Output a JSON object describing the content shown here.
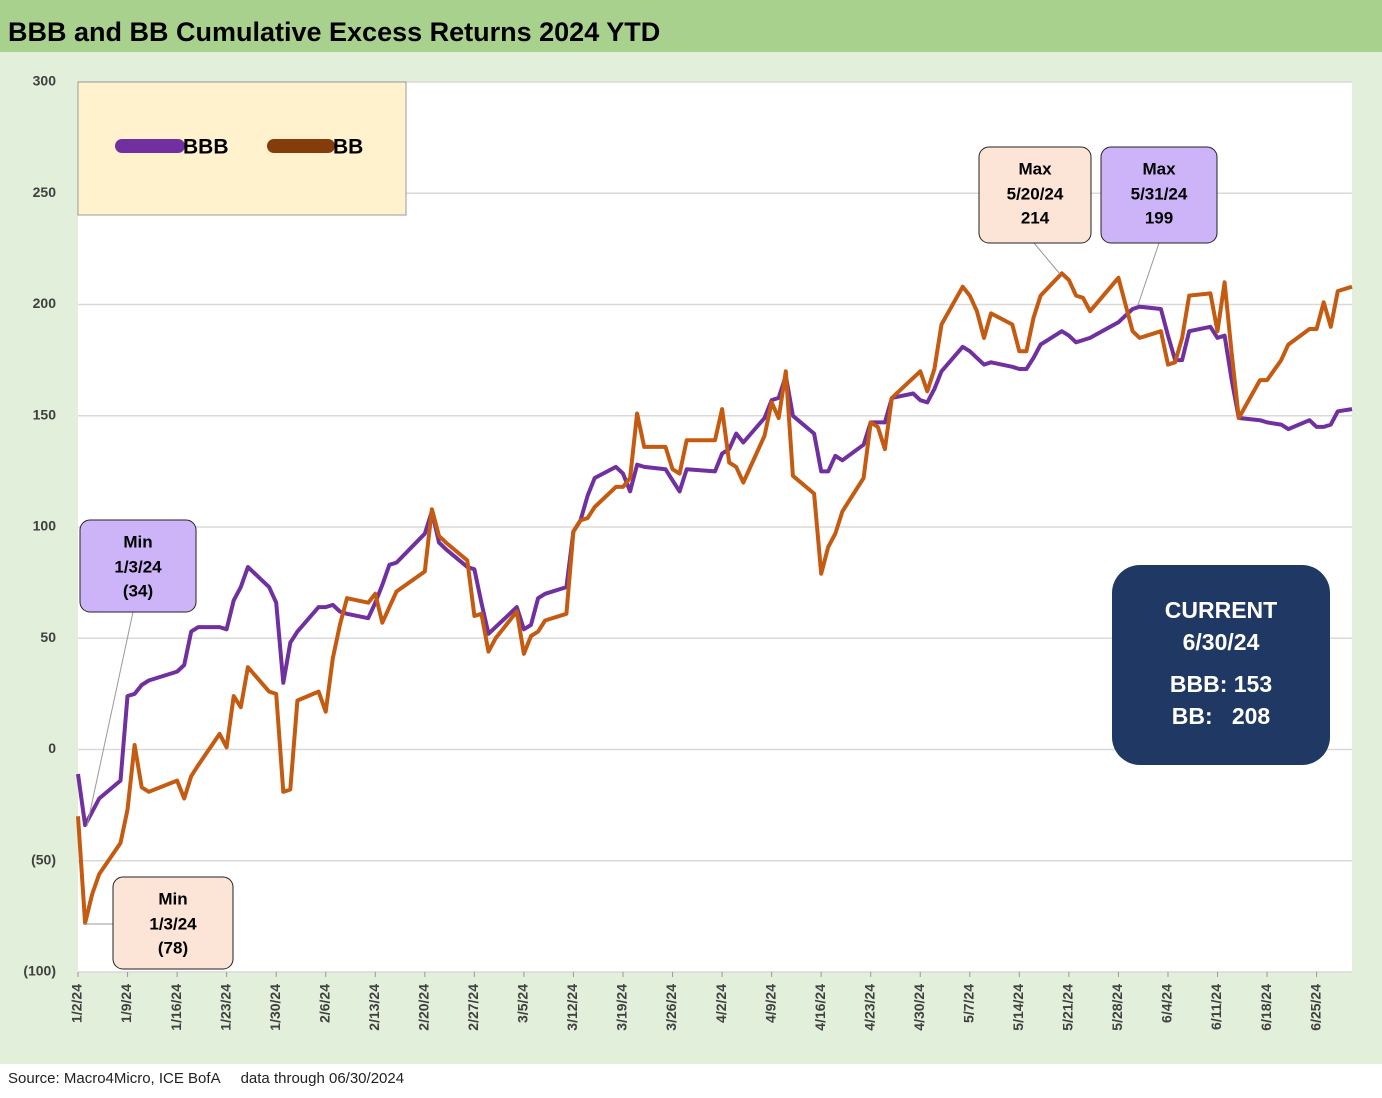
{
  "chart_data": {
    "type": "line",
    "title": "BBB and BB Cumulative Excess Returns 2024 YTD",
    "source": "Source: Macro4Micro, ICE BofA     data through 06/30/2024",
    "x": [
      "1/2/24",
      "1/3/24",
      "1/4/24",
      "1/5/24",
      "1/8/24",
      "1/9/24",
      "1/10/24",
      "1/11/24",
      "1/12/24",
      "1/16/24",
      "1/17/24",
      "1/18/24",
      "1/19/24",
      "1/22/24",
      "1/23/24",
      "1/24/24",
      "1/25/24",
      "1/26/24",
      "1/29/24",
      "1/30/24",
      "1/31/24",
      "2/1/24",
      "2/2/24",
      "2/5/24",
      "2/6/24",
      "2/7/24",
      "2/8/24",
      "2/9/24",
      "2/12/24",
      "2/13/24",
      "2/14/24",
      "2/15/24",
      "2/16/24",
      "2/20/24",
      "2/21/24",
      "2/22/24",
      "2/23/24",
      "2/26/24",
      "2/27/24",
      "2/28/24",
      "2/29/24",
      "3/1/24",
      "3/4/24",
      "3/5/24",
      "3/6/24",
      "3/7/24",
      "3/8/24",
      "3/11/24",
      "3/12/24",
      "3/13/24",
      "3/14/24",
      "3/15/24",
      "3/18/24",
      "3/19/24",
      "3/20/24",
      "3/21/24",
      "3/22/24",
      "3/25/24",
      "3/26/24",
      "3/27/24",
      "3/28/24",
      "4/1/24",
      "4/2/24",
      "4/3/24",
      "4/4/24",
      "4/5/24",
      "4/8/24",
      "4/9/24",
      "4/10/24",
      "4/11/24",
      "4/12/24",
      "4/15/24",
      "4/16/24",
      "4/17/24",
      "4/18/24",
      "4/19/24",
      "4/22/24",
      "4/23/24",
      "4/24/24",
      "4/25/24",
      "4/26/24",
      "4/29/24",
      "4/30/24",
      "5/1/24",
      "5/2/24",
      "5/3/24",
      "5/6/24",
      "5/7/24",
      "5/8/24",
      "5/9/24",
      "5/10/24",
      "5/13/24",
      "5/14/24",
      "5/15/24",
      "5/16/24",
      "5/17/24",
      "5/20/24",
      "5/21/24",
      "5/22/24",
      "5/23/24",
      "5/24/24",
      "5/28/24",
      "5/29/24",
      "5/30/24",
      "5/31/24",
      "6/3/24",
      "6/4/24",
      "6/5/24",
      "6/6/24",
      "6/7/24",
      "6/10/24",
      "6/11/24",
      "6/12/24",
      "6/13/24",
      "6/14/24",
      "6/17/24",
      "6/18/24",
      "6/20/24",
      "6/21/24",
      "6/24/24",
      "6/25/24",
      "6/26/24",
      "6/27/24",
      "6/28/24",
      "6/30/24"
    ],
    "series": [
      {
        "name": "BBB",
        "color": "#7030a0",
        "values": [
          -11,
          -34,
          -28,
          -22,
          -14,
          24,
          25,
          29,
          31,
          35,
          38,
          53,
          55,
          55,
          54,
          67,
          73,
          82,
          73,
          66,
          30,
          48,
          53,
          64,
          64,
          65,
          62,
          61,
          59,
          66,
          74,
          83,
          84,
          97,
          107,
          93,
          90,
          82,
          81,
          66,
          52,
          55,
          64,
          54,
          56,
          68,
          70,
          73,
          98,
          103,
          114,
          122,
          127,
          124,
          116,
          128,
          127,
          126,
          121,
          116,
          126,
          125,
          133,
          135,
          142,
          138,
          149,
          157,
          158,
          168,
          150,
          142,
          125,
          125,
          132,
          130,
          137,
          147,
          147,
          147,
          158,
          160,
          157,
          156,
          162,
          170,
          181,
          179,
          176,
          173,
          174,
          172,
          171,
          171,
          176,
          182,
          188,
          186,
          183,
          184,
          185,
          192,
          195,
          198,
          199,
          198,
          186,
          175,
          175,
          188,
          190,
          185,
          186,
          166,
          149,
          148,
          147,
          146,
          144,
          148,
          145,
          145,
          146,
          152,
          153
        ]
      },
      {
        "name": "BB",
        "color": "#c55a11",
        "values": [
          -30,
          -78,
          -65,
          -56,
          -42,
          -27,
          2,
          -17,
          -19,
          -14,
          -22,
          -12,
          -7,
          7,
          1,
          24,
          19,
          37,
          26,
          25,
          -19,
          -18,
          22,
          26,
          17,
          41,
          56,
          68,
          66,
          70,
          57,
          64,
          71,
          80,
          108,
          96,
          93,
          85,
          60,
          61,
          44,
          50,
          62,
          43,
          51,
          53,
          58,
          61,
          98,
          103,
          104,
          109,
          118,
          118,
          122,
          151,
          136,
          136,
          126,
          124,
          139,
          139,
          153,
          129,
          127,
          120,
          141,
          156,
          149,
          170,
          123,
          115,
          79,
          91,
          97,
          107,
          122,
          147,
          145,
          135,
          158,
          167,
          170,
          161,
          171,
          191,
          208,
          204,
          197,
          185,
          196,
          191,
          179,
          179,
          194,
          204,
          214,
          211,
          204,
          203,
          197,
          212,
          200,
          188,
          185,
          188,
          173,
          174,
          185,
          204,
          205,
          188,
          210,
          178,
          149,
          166,
          166,
          175,
          182,
          189,
          189,
          201,
          190,
          206,
          208
        ]
      }
    ],
    "xlim": [
      "1/2/24",
      "6/30/24"
    ],
    "xticks": [
      "1/2/24",
      "1/9/24",
      "1/16/24",
      "1/23/24",
      "1/30/24",
      "2/6/24",
      "2/13/24",
      "2/20/24",
      "2/27/24",
      "3/5/24",
      "3/12/24",
      "3/19/24",
      "3/26/24",
      "4/2/24",
      "4/9/24",
      "4/16/24",
      "4/23/24",
      "4/30/24",
      "5/7/24",
      "5/14/24",
      "5/21/24",
      "5/28/24",
      "6/4/24",
      "6/11/24",
      "6/18/24",
      "6/25/24"
    ],
    "ylim": [
      -100,
      300
    ],
    "yticks": [
      {
        "value": -100,
        "label": "(100)"
      },
      {
        "value": -50,
        "label": "(50)"
      },
      0,
      50,
      100,
      150,
      200,
      250,
      300
    ],
    "grid": true,
    "legend": "top-left",
    "annotations": [
      {
        "lines": [
          "Min",
          "1/3/24",
          "(34)"
        ]
      },
      {
        "lines": [
          "Min",
          "1/3/24",
          "(78)"
        ]
      },
      {
        "lines": [
          "Max",
          "5/20/24",
          "214"
        ]
      },
      {
        "lines": [
          "Max",
          "5/31/24",
          "199"
        ]
      },
      {
        "lines": [
          "CURRENT",
          "6/30/24",
          "BBB: 153",
          "BB:   208"
        ]
      }
    ]
  }
}
